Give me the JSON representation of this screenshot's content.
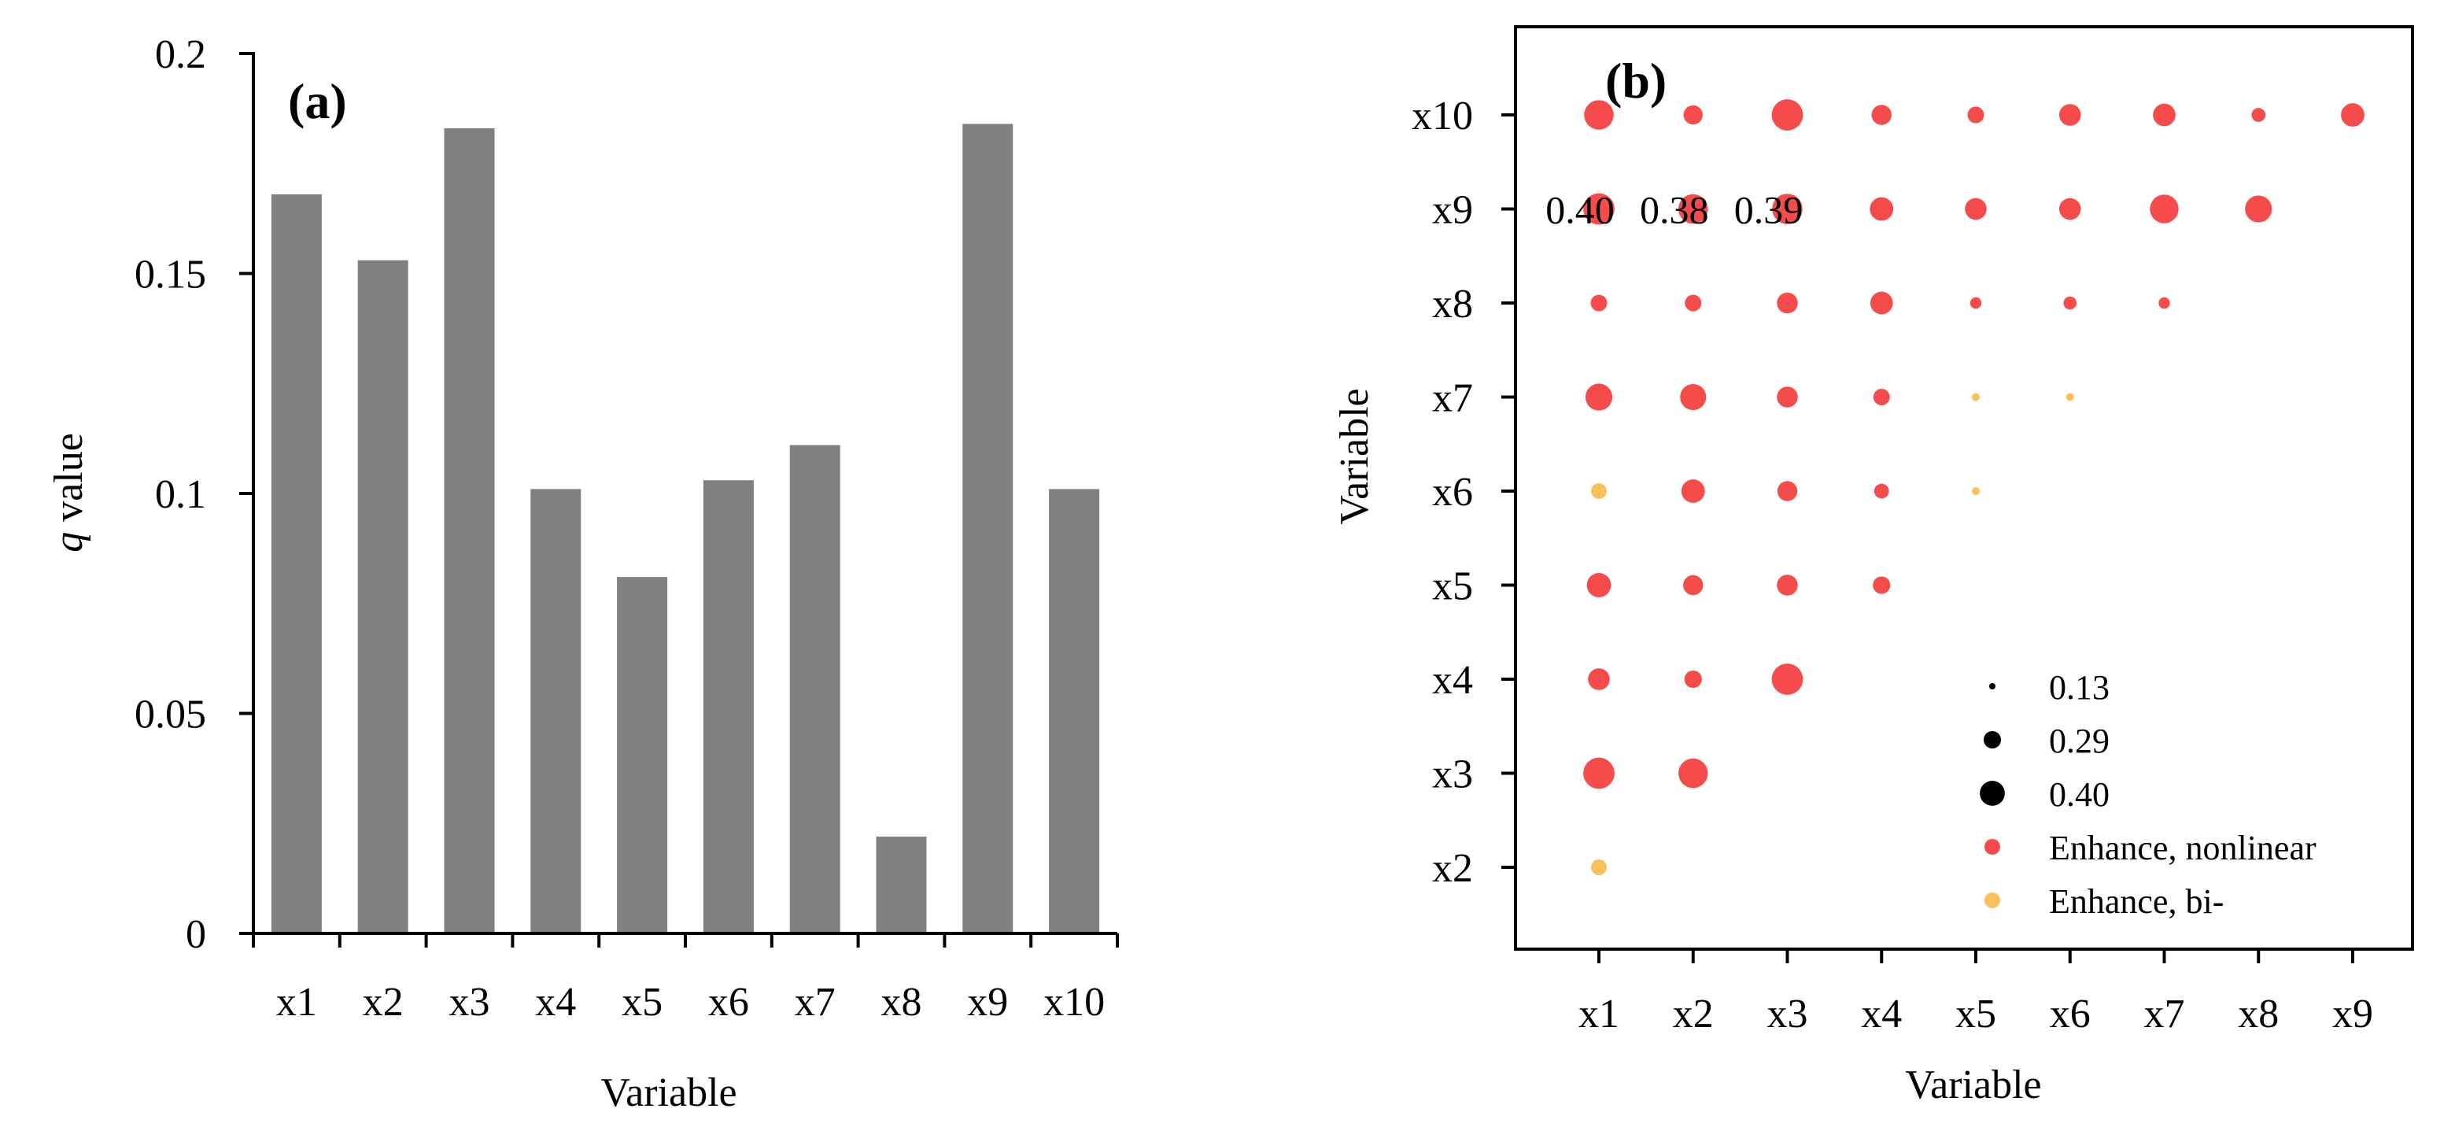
{
  "chart_data": [
    {
      "type": "bar",
      "panel_label": "(a)",
      "xlabel": "Variable",
      "ylabel_italic": "q",
      "ylabel_rest": " value",
      "ylim": [
        0,
        0.2
      ],
      "yticks": [
        0,
        0.05,
        0.1,
        0.15,
        0.2
      ],
      "ytick_labels": [
        "0",
        "0.05",
        "0.1",
        "0.15",
        "0.2"
      ],
      "categories": [
        "x1",
        "x2",
        "x3",
        "x4",
        "x5",
        "x6",
        "x7",
        "x8",
        "x9",
        "x10"
      ],
      "values": [
        0.168,
        0.153,
        0.183,
        0.101,
        0.081,
        0.103,
        0.111,
        0.022,
        0.184,
        0.101
      ],
      "bar_color": "#808080"
    },
    {
      "type": "scatter",
      "panel_label": "(b)",
      "xlabel": "Variable",
      "ylabel": "Variable",
      "x_categories": [
        "x1",
        "x2",
        "x3",
        "x4",
        "x5",
        "x6",
        "x7",
        "x8",
        "x9"
      ],
      "y_categories": [
        "x2",
        "x3",
        "x4",
        "x5",
        "x6",
        "x7",
        "x8",
        "x9",
        "x10"
      ],
      "colors": {
        "nonlinear": "#f54b4b",
        "bi": "#f8c15a"
      },
      "points": [
        {
          "x": "x1",
          "y": "x2",
          "value": 0.22,
          "type": "bi"
        },
        {
          "x": "x1",
          "y": "x3",
          "value": 0.4,
          "type": "nonlinear"
        },
        {
          "x": "x2",
          "y": "x3",
          "value": 0.38,
          "type": "nonlinear"
        },
        {
          "x": "x1",
          "y": "x4",
          "value": 0.29,
          "type": "nonlinear"
        },
        {
          "x": "x2",
          "y": "x4",
          "value": 0.24,
          "type": "nonlinear"
        },
        {
          "x": "x3",
          "y": "x4",
          "value": 0.4,
          "type": "nonlinear"
        },
        {
          "x": "x1",
          "y": "x5",
          "value": 0.32,
          "type": "nonlinear"
        },
        {
          "x": "x2",
          "y": "x5",
          "value": 0.27,
          "type": "nonlinear"
        },
        {
          "x": "x3",
          "y": "x5",
          "value": 0.28,
          "type": "nonlinear"
        },
        {
          "x": "x4",
          "y": "x5",
          "value": 0.24,
          "type": "nonlinear"
        },
        {
          "x": "x1",
          "y": "x6",
          "value": 0.22,
          "type": "bi"
        },
        {
          "x": "x2",
          "y": "x6",
          "value": 0.31,
          "type": "nonlinear"
        },
        {
          "x": "x3",
          "y": "x6",
          "value": 0.27,
          "type": "nonlinear"
        },
        {
          "x": "x4",
          "y": "x6",
          "value": 0.21,
          "type": "nonlinear"
        },
        {
          "x": "x5",
          "y": "x6",
          "value": 0.13,
          "type": "bi"
        },
        {
          "x": "x1",
          "y": "x7",
          "value": 0.35,
          "type": "nonlinear"
        },
        {
          "x": "x2",
          "y": "x7",
          "value": 0.34,
          "type": "nonlinear"
        },
        {
          "x": "x3",
          "y": "x7",
          "value": 0.28,
          "type": "nonlinear"
        },
        {
          "x": "x4",
          "y": "x7",
          "value": 0.23,
          "type": "nonlinear"
        },
        {
          "x": "x5",
          "y": "x7",
          "value": 0.13,
          "type": "bi"
        },
        {
          "x": "x6",
          "y": "x7",
          "value": 0.13,
          "type": "bi"
        },
        {
          "x": "x1",
          "y": "x8",
          "value": 0.23,
          "type": "nonlinear"
        },
        {
          "x": "x2",
          "y": "x8",
          "value": 0.23,
          "type": "nonlinear"
        },
        {
          "x": "x3",
          "y": "x8",
          "value": 0.28,
          "type": "nonlinear"
        },
        {
          "x": "x4",
          "y": "x8",
          "value": 0.3,
          "type": "nonlinear"
        },
        {
          "x": "x5",
          "y": "x8",
          "value": 0.17,
          "type": "nonlinear"
        },
        {
          "x": "x6",
          "y": "x8",
          "value": 0.19,
          "type": "nonlinear"
        },
        {
          "x": "x7",
          "y": "x8",
          "value": 0.17,
          "type": "nonlinear"
        },
        {
          "x": "x1",
          "y": "x9",
          "value": 0.4,
          "type": "nonlinear"
        },
        {
          "x": "x2",
          "y": "x9",
          "value": 0.38,
          "type": "nonlinear"
        },
        {
          "x": "x3",
          "y": "x9",
          "value": 0.39,
          "type": "nonlinear"
        },
        {
          "x": "x4",
          "y": "x9",
          "value": 0.31,
          "type": "nonlinear"
        },
        {
          "x": "x5",
          "y": "x9",
          "value": 0.29,
          "type": "nonlinear"
        },
        {
          "x": "x6",
          "y": "x9",
          "value": 0.29,
          "type": "nonlinear"
        },
        {
          "x": "x7",
          "y": "x9",
          "value": 0.37,
          "type": "nonlinear"
        },
        {
          "x": "x8",
          "y": "x9",
          "value": 0.35,
          "type": "nonlinear"
        },
        {
          "x": "x1",
          "y": "x10",
          "value": 0.38,
          "type": "nonlinear"
        },
        {
          "x": "x2",
          "y": "x10",
          "value": 0.26,
          "type": "nonlinear"
        },
        {
          "x": "x3",
          "y": "x10",
          "value": 0.4,
          "type": "nonlinear"
        },
        {
          "x": "x4",
          "y": "x10",
          "value": 0.27,
          "type": "nonlinear"
        },
        {
          "x": "x5",
          "y": "x10",
          "value": 0.23,
          "type": "nonlinear"
        },
        {
          "x": "x6",
          "y": "x10",
          "value": 0.29,
          "type": "nonlinear"
        },
        {
          "x": "x7",
          "y": "x10",
          "value": 0.3,
          "type": "nonlinear"
        },
        {
          "x": "x8",
          "y": "x10",
          "value": 0.2,
          "type": "nonlinear"
        },
        {
          "x": "x9",
          "y": "x10",
          "value": 0.31,
          "type": "nonlinear"
        }
      ],
      "annotations": [
        {
          "x": "x1",
          "y": "x9",
          "text": "0.40"
        },
        {
          "x": "x2",
          "y": "x9",
          "text": "0.38"
        },
        {
          "x": "x3",
          "y": "x9",
          "text": "0.39"
        }
      ],
      "legend": {
        "placement": "bottom-right",
        "sizes": [
          {
            "label": "0.13",
            "value": 0.13
          },
          {
            "label": "0.29",
            "value": 0.29
          },
          {
            "label": "0.40",
            "value": 0.4
          }
        ],
        "types": [
          {
            "label": "Enhance, nonlinear",
            "type": "nonlinear"
          },
          {
            "label": "Enhance, bi-",
            "type": "bi"
          }
        ]
      }
    }
  ]
}
